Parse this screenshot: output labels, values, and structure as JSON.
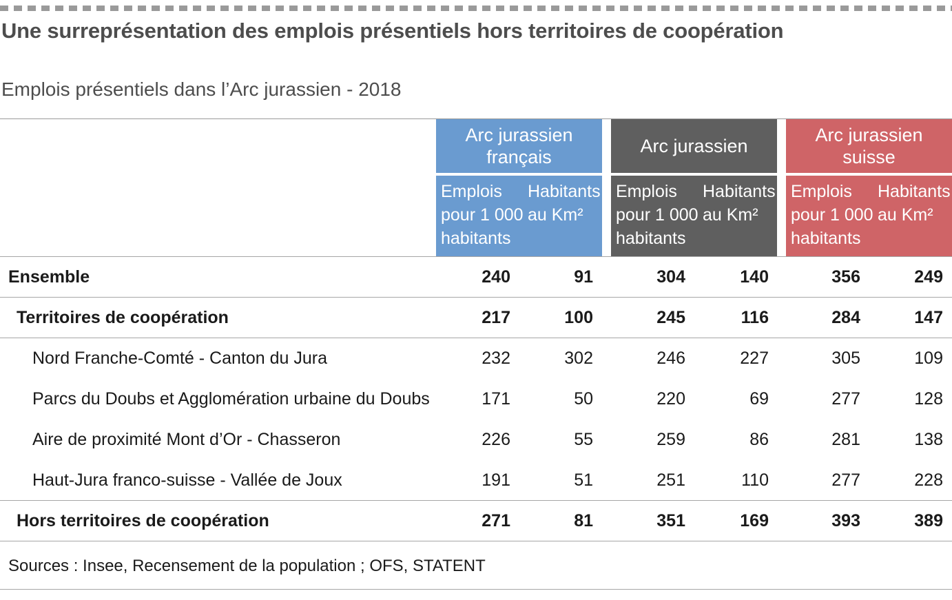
{
  "title": "Une surreprésentation des emplois présentiels hors territoires de coopération",
  "subtitle": "Emplois présentiels dans l’Arc jurassien - 2018",
  "groups": [
    {
      "label": "Arc jurassien français",
      "color": "#6a9bd0"
    },
    {
      "label": "Arc jurassien",
      "color": "#5f5f5f"
    },
    {
      "label": "Arc jurassien suisse",
      "color": "#cf6467"
    }
  ],
  "subheaders": {
    "emplois": "Emplois pour 1 000 habitants",
    "habitants": "Habitants au Km²"
  },
  "rows": [
    {
      "label": "Ensemble",
      "bold": true,
      "values": [
        "240",
        "91",
        "304",
        "140",
        "356",
        "249"
      ]
    },
    {
      "label": "Territoires de coopération",
      "bold": true,
      "values": [
        "217",
        "100",
        "245",
        "116",
        "284",
        "147"
      ]
    },
    {
      "label": "Nord Franche-Comté - Canton du Jura",
      "bold": false,
      "values": [
        "232",
        "302",
        "246",
        "227",
        "305",
        "109"
      ]
    },
    {
      "label": "Parcs du Doubs et Agglomération urbaine du Doubs",
      "bold": false,
      "values": [
        "171",
        "50",
        "220",
        "69",
        "277",
        "128"
      ]
    },
    {
      "label": "Aire de proximité Mont d’Or - Chasseron",
      "bold": false,
      "values": [
        "226",
        "55",
        "259",
        "86",
        "281",
        "138"
      ]
    },
    {
      "label": "Haut-Jura franco-suisse - Vallée de Joux",
      "bold": false,
      "values": [
        "191",
        "51",
        "251",
        "110",
        "277",
        "228"
      ]
    },
    {
      "label": "Hors territoires de coopération",
      "bold": true,
      "values": [
        "271",
        "81",
        "351",
        "169",
        "393",
        "389"
      ]
    }
  ],
  "source": "Sources : Insee, Recensement de la population ; OFS, STATENT"
}
